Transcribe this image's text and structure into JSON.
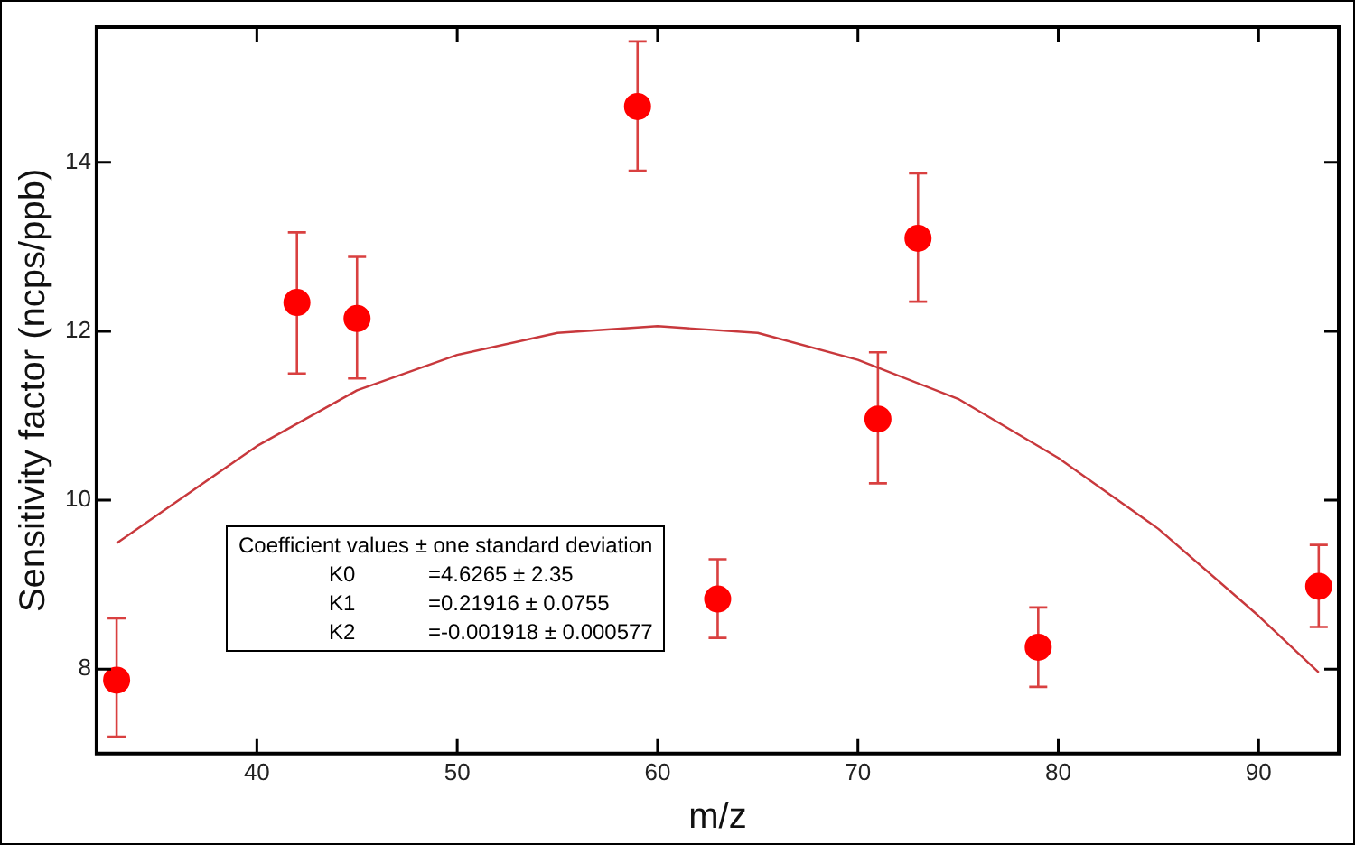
{
  "chart_data": {
    "type": "scatter",
    "xlabel": "m/z",
    "ylabel": "Sensitivity factor (ncps/ppb)",
    "xlim": [
      32,
      94
    ],
    "xticks": [
      40,
      50,
      60,
      70,
      80,
      90
    ],
    "ylim": [
      7,
      15.6
    ],
    "yticks": [
      8,
      10,
      12,
      14
    ],
    "grid": false,
    "legend": false,
    "marker": "circle",
    "annotations": [
      "Coefficient values ± one standard deviation",
      "K0 =4.6265 ± 2.35",
      "K1 =0.21916 ± 0.0755",
      "K2 =-0.001918 ± 0.000577"
    ],
    "series": [
      {
        "color": "#ff0000",
        "x": [
          33,
          42,
          45,
          59,
          63,
          71,
          73,
          79,
          93
        ],
        "values": [
          7.87,
          12.34,
          12.15,
          14.66,
          8.83,
          10.96,
          13.1,
          8.26,
          8.98
        ],
        "errors": [
          [
            7.2,
            8.6
          ],
          [
            11.5,
            13.17
          ],
          [
            11.44,
            12.88
          ],
          [
            13.9,
            15.43
          ],
          [
            8.37,
            9.3
          ],
          [
            10.2,
            11.75
          ],
          [
            12.35,
            13.87
          ],
          [
            7.79,
            8.73
          ],
          [
            8.5,
            9.47
          ]
        ]
      },
      {
        "type": "line",
        "color": "#c8383c",
        "marker": "none",
        "x": [
          33,
          40,
          45,
          50,
          55,
          60,
          65,
          70,
          75,
          80,
          85,
          90,
          93
        ],
        "values": [
          9.49,
          10.64,
          11.3,
          11.72,
          11.98,
          12.06,
          11.98,
          11.66,
          11.2,
          10.5,
          9.66,
          8.63,
          7.96
        ]
      }
    ]
  }
}
